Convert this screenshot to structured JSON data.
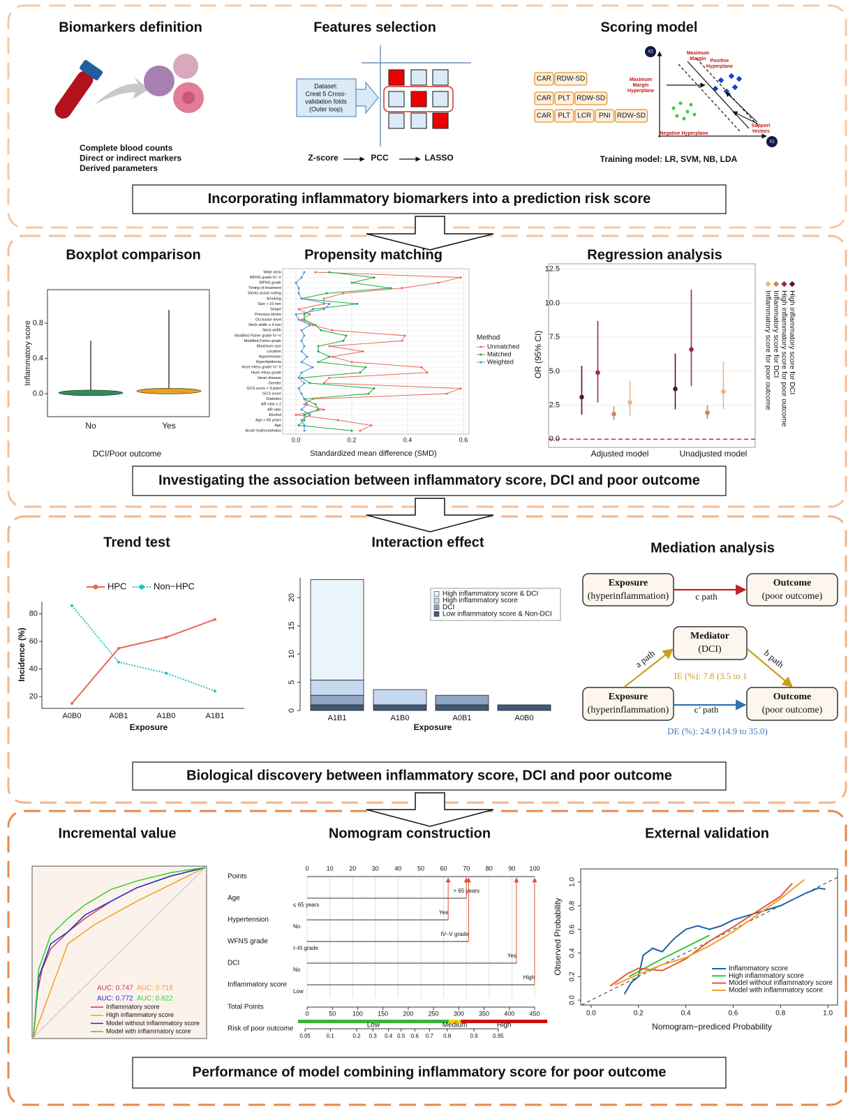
{
  "risk_score": {
    "banner": "Incorporating inflammatory biomarkers into a prediction risk score",
    "biomarkers": {
      "title": "Biomarkers definition",
      "notes": [
        "Complete blood counts",
        "Direct or indirect markers",
        "Derived parameters"
      ]
    },
    "features": {
      "title": "Features selection",
      "dataset": [
        "Dataset:",
        "Creat 5 Cross-",
        "validation folds",
        "(Outer loop)"
      ],
      "steps": [
        "Z-score",
        "PCC",
        "LASSO"
      ]
    },
    "scoring": {
      "title": "Scoring model",
      "feature_sets": [
        [
          "CAR",
          "RDW-SD"
        ],
        [
          "CAR",
          "PLT",
          "RDW-SD"
        ],
        [
          "CAR",
          "PLT",
          "LCR",
          "PNI",
          "RDW-SD"
        ]
      ],
      "axes": [
        "X2",
        "X1"
      ],
      "svm_labels": [
        "Maximum",
        "Margin",
        "Positive",
        "Hyperplane",
        "Maximum",
        "Margin",
        "Hyperplane",
        "Negative Hyperplane",
        "Support",
        "Vectors"
      ],
      "caption": "Training model: LR, SVM, NB, LDA"
    }
  },
  "association": {
    "banner": "Investigating the association between inflammatory score, DCI and poor outcome",
    "boxplot": {
      "type": "violin",
      "title": "Boxplot comparison",
      "categories": [
        "No",
        "Yes"
      ],
      "colors": [
        "#2e8b57",
        "#e8a020"
      ],
      "max": [
        0.6,
        0.95
      ],
      "median": [
        0.01,
        0.03
      ],
      "x_label": "DCI/Poor outcome",
      "y_label": "Inflammatory score",
      "ylim": [
        -0.26,
        1.18
      ],
      "yticks": [
        {
          "value": 0,
          "label": "0.0"
        },
        0.4,
        0.8
      ]
    },
    "propensity": {
      "type": "dot-line",
      "title": "Propensity matching",
      "x_label": "Standardized mean difference (SMD)",
      "legend_title": "Method",
      "categories": [
        "Wide neck",
        "WFNS grade IV−V",
        "WFNS grade",
        "Timing of treatment",
        "Stents assist coiling",
        "Smoking",
        "Size > 10 mm",
        "Shape",
        "Previous stroke",
        "Occlusion level",
        "Neck width ≥ 4 mm",
        "Neck width",
        "Modified Fisher grade IV−V",
        "Modified Fisher grade",
        "Maximum size",
        "Location",
        "Hypertension",
        "Hyperlipidemia",
        "Hunt−Hess grade IV−V",
        "Hunt−Hess grade",
        "Heart disease",
        "Gender",
        "GCS score < 9 point",
        "GCS score",
        "Diabetes",
        "AR ratio ≤ 2",
        "AR ratio",
        "Alcohol",
        "Age > 65 years",
        "Age",
        "Acute hydrocephalus"
      ],
      "series": [
        {
          "name": "Unmatched",
          "color": "#e8675a",
          "values": [
            0.07,
            0.59,
            0.51,
            0.38,
            0.17,
            0.1,
            0.1,
            0.01,
            0.05,
            0.02,
            0.06,
            0.13,
            0.39,
            0.38,
            0.12,
            0.24,
            0.13,
            0.2,
            0.45,
            0.47,
            0.12,
            0.1,
            0.59,
            0.54,
            0.06,
            0.03,
            0.1,
            0.0,
            0.15,
            0.27,
            0.23
          ]
        },
        {
          "name": "Matched",
          "color": "#22a845",
          "values": [
            0.12,
            0.28,
            0.2,
            0.34,
            0.11,
            0.02,
            0.22,
            0.06,
            0.03,
            0.03,
            0.07,
            0.09,
            0.18,
            0.17,
            0.08,
            0.08,
            0.12,
            0.08,
            0.25,
            0.23,
            0.02,
            0.05,
            0.28,
            0.26,
            0.03,
            0.07,
            0.08,
            0.03,
            0.03,
            0.01,
            0.2
          ]
        },
        {
          "name": "Weighted",
          "color": "#4a8fe0",
          "values": [
            0.03,
            0.02,
            0.0,
            0.01,
            0.01,
            0.02,
            0.12,
            0.1,
            0.0,
            0.01,
            0.05,
            0.02,
            0.03,
            0.02,
            0.03,
            0.02,
            0.04,
            0.02,
            0.06,
            0.02,
            0.01,
            0.03,
            0.01,
            0.02,
            0.03,
            0.04,
            0.02,
            0.05,
            0.02,
            0.03,
            0.03
          ]
        }
      ],
      "xlim": [
        -0.0475,
        0.62
      ],
      "xticks": [
        {
          "value": 0,
          "label": "0.0"
        },
        0.2,
        0.4,
        0.6
      ],
      "grid": true
    },
    "regression": {
      "type": "pointrange",
      "title": "Regression analysis",
      "y_label": "OR (95% CI)",
      "categories": [
        "Adjusted model",
        "Unadjusted model"
      ],
      "series": [
        {
          "name": "High inflammatory score for DCI",
          "color": "#5c0f2a",
          "values": [
            3.1,
            3.7
          ],
          "lower": [
            1.8,
            2.2
          ],
          "upper": [
            5.4,
            6.3
          ]
        },
        {
          "name": "High inflammatory score for poor outcome",
          "color": "#a0253e",
          "values": [
            4.9,
            6.6
          ],
          "lower": [
            2.7,
            3.9
          ],
          "upper": [
            8.7,
            11.0
          ]
        },
        {
          "name": "Inflammatory score for DCI",
          "color": "#d9805f",
          "values": [
            1.85,
            1.95
          ],
          "lower": [
            1.4,
            1.5
          ],
          "upper": [
            2.4,
            2.5
          ]
        },
        {
          "name": "Inflammatory score for poor outcome",
          "color": "#f0b282",
          "values": [
            2.7,
            3.5
          ],
          "lower": [
            1.7,
            2.2
          ],
          "upper": [
            4.3,
            5.7
          ]
        }
      ],
      "reference_line": 0,
      "ylim": [
        -0.6,
        12.9
      ],
      "yticks": [
        {
          "value": 0,
          "label": "0.0"
        },
        2.5,
        {
          "value": 5,
          "label": "5.0"
        },
        7.5,
        {
          "value": 10,
          "label": "10.0"
        },
        12.5
      ],
      "grid": true
    }
  },
  "discovery": {
    "banner": "Biological discovery between inflammatory score, DCI and poor outcome",
    "trend": {
      "type": "line",
      "title": "Trend test",
      "x_label": "Exposure",
      "y_label": "Incidence (%)",
      "categories": [
        "A0B0",
        "A0B1",
        "A1B0",
        "A1B1"
      ],
      "series": [
        {
          "name": "HPC",
          "color": "#e8675a",
          "values": [
            15,
            55,
            63,
            76
          ]
        },
        {
          "name": "Non−HPC",
          "color": "#26c0c0",
          "dashed": true,
          "values": [
            86,
            45,
            37,
            24
          ]
        }
      ],
      "ylim": [
        11.4,
        88.9
      ],
      "yticks": [
        20,
        40,
        60,
        80
      ]
    },
    "interaction": {
      "type": "stacked-bar",
      "title": "Interaction effect",
      "x_label": "Exposure",
      "categories": [
        "A1B1",
        "A1B0",
        "A0B1",
        "A0B0"
      ],
      "series": [
        {
          "name": "Low inflammatory score & Non-DCI",
          "color": "#3f5a78",
          "values": [
            1,
            1,
            1,
            1
          ]
        },
        {
          "name": "DCI",
          "color": "#8fa5c3",
          "values": [
            1.7,
            0,
            1.7,
            0
          ]
        },
        {
          "name": "High inflammatory score",
          "color": "#c5d8ef",
          "values": [
            2.7,
            2.7,
            0,
            0
          ]
        },
        {
          "name": "High inflammatory score & DCI",
          "color": "#eaf4fb",
          "values": [
            17.8,
            0,
            0,
            0
          ]
        }
      ],
      "ylim": [
        0,
        23.5
      ],
      "yticks": [
        0,
        5,
        10,
        15,
        20
      ]
    },
    "mediation": {
      "title": "Mediation analysis",
      "exposure_top": [
        "Exposure",
        "(hyperinflammation)"
      ],
      "outcome_top": [
        "Outcome",
        "(poor outcome)"
      ],
      "c_path": "c path",
      "mediator": [
        "Mediator",
        "(DCI)"
      ],
      "a_path": "a path",
      "b_path": "b path",
      "indirect": "IE (%): 7.8 (3.5 to 1",
      "exposure_bottom": [
        "Exposure",
        "(hyperinflammation)"
      ],
      "outcome_bottom": [
        "Outcome",
        "(poor outcome)"
      ],
      "c_prime_path": "c’ path",
      "direct": "DE (%): 24.9 (14.9 to 35.0)"
    }
  },
  "performance": {
    "banner": "Performance of model combining inflammatory score for poor outcome",
    "roc": {
      "type": "roc",
      "title": "Incremental value",
      "xlim": [
        0,
        1
      ],
      "ylim": [
        0,
        1
      ],
      "series": [
        {
          "name": "Inflammatory score",
          "auc_label": "AUC: 0.747",
          "color": "#c8384a",
          "fpr": [
            0,
            0.02,
            0.05,
            0.1,
            0.2,
            0.3,
            0.45,
            0.6,
            0.8,
            1
          ],
          "tpr": [
            0,
            0.25,
            0.4,
            0.52,
            0.62,
            0.7,
            0.8,
            0.88,
            0.95,
            1
          ]
        },
        {
          "name": "High inflammatory score",
          "auc_label": "AUC: 0.718",
          "color": "#f0a020",
          "fpr": [
            0,
            0.2,
            0.35,
            0.6,
            0.8,
            1
          ],
          "tpr": [
            0,
            0.55,
            0.66,
            0.8,
            0.9,
            1
          ]
        },
        {
          "name": "Model without inflammatory score",
          "auc_label": "AUC: 0.772",
          "color": "#1a2fd0",
          "fpr": [
            0,
            0.03,
            0.1,
            0.2,
            0.3,
            0.45,
            0.6,
            0.8,
            1
          ],
          "tpr": [
            0,
            0.35,
            0.55,
            0.62,
            0.72,
            0.8,
            0.88,
            0.95,
            1
          ]
        },
        {
          "name": "Model with inflammatory score",
          "auc_label": "AUC: 0.822",
          "color": "#30d030",
          "fpr": [
            0,
            0.03,
            0.1,
            0.2,
            0.3,
            0.45,
            0.6,
            0.8,
            1
          ],
          "tpr": [
            0,
            0.4,
            0.6,
            0.7,
            0.78,
            0.87,
            0.92,
            0.97,
            1
          ]
        }
      ]
    },
    "nomogram": {
      "type": "nomogram",
      "title": "Nomogram construction",
      "points_label": "Points",
      "points_ticks": [
        0,
        10,
        20,
        30,
        40,
        50,
        60,
        70,
        80,
        90,
        100
      ],
      "variables": [
        {
          "name": "Age",
          "levels": [
            "≤ 65 years",
            "> 65 years"
          ],
          "points": [
            0,
            70
          ]
        },
        {
          "name": "Hypertension",
          "levels": [
            "No",
            "Yes"
          ],
          "points": [
            0,
            62
          ]
        },
        {
          "name": "WFNS grade",
          "levels": [
            "I–III grade",
            "IV–V grade"
          ],
          "points": [
            0,
            71
          ]
        },
        {
          "name": "DCI",
          "levels": [
            "No",
            "Yes"
          ],
          "points": [
            0,
            92
          ]
        },
        {
          "name": "Inflammatory score",
          "levels": [
            "Low",
            "High"
          ],
          "points": [
            0,
            100
          ]
        }
      ],
      "total_label": "Total Points",
      "total_ticks": [
        0,
        50,
        100,
        150,
        200,
        250,
        300,
        350,
        400,
        450
      ],
      "risk_label": "Risk of poor outcome",
      "risk_ticks": [
        0.05,
        0.1,
        0.2,
        0.3,
        0.4,
        0.5,
        0.6,
        0.7,
        0.8,
        0.9,
        0.95
      ],
      "risk_tick_points": [
        -4,
        46,
        98,
        130,
        161,
        186,
        213,
        242,
        277,
        330,
        378
      ],
      "risk_bands": [
        {
          "label": "Low",
          "color": "#3cb43c",
          "from": -18,
          "to": 280
        },
        {
          "label": "Medium",
          "color": "#f0d000",
          "from": 280,
          "to": 304
        },
        {
          "label": "High",
          "color": "#cc1010",
          "from": 304,
          "to": 475
        }
      ]
    },
    "calibration": {
      "type": "line",
      "title": "External validation",
      "x_label": "Nomogram−prediced Probability",
      "y_label": "Observed Probability",
      "xlim": [
        -0.044,
        1.041
      ],
      "ylim": [
        -0.041,
        1.112
      ],
      "xticks": [
        {
          "value": 0,
          "label": "0.0"
        },
        0.2,
        0.4,
        0.6,
        0.8,
        {
          "value": 1,
          "label": "1.0"
        }
      ],
      "yticks": [
        {
          "value": 0,
          "label": "0.0"
        },
        0.2,
        0.4,
        0.6,
        0.8,
        {
          "value": 1,
          "label": "1.0"
        }
      ],
      "series": [
        {
          "name": "Inflammatory score",
          "color": "#1f5fa8",
          "x": [
            0.14,
            0.17,
            0.2,
            0.22,
            0.26,
            0.3,
            0.35,
            0.4,
            0.45,
            0.5,
            0.55,
            0.6,
            0.7,
            0.8,
            0.9,
            0.96,
            0.99
          ],
          "y": [
            0.05,
            0.15,
            0.2,
            0.38,
            0.44,
            0.41,
            0.52,
            0.6,
            0.63,
            0.6,
            0.63,
            0.68,
            0.74,
            0.8,
            0.9,
            0.95,
            0.94
          ]
        },
        {
          "name": "High inflammatory score",
          "color": "#30c830",
          "x": [
            0.16,
            0.3,
            0.45,
            0.5
          ],
          "y": [
            0.2,
            0.35,
            0.5,
            0.55
          ]
        },
        {
          "name": "Model without inflammatory score",
          "color": "#e8553a",
          "x": [
            0.08,
            0.15,
            0.2,
            0.3,
            0.4,
            0.5,
            0.6,
            0.7,
            0.8,
            0.85
          ],
          "y": [
            0.12,
            0.22,
            0.27,
            0.25,
            0.35,
            0.5,
            0.62,
            0.75,
            0.88,
            0.99
          ]
        },
        {
          "name": "Model with inflammatory score",
          "color": "#f0a020",
          "x": [
            0.1,
            0.2,
            0.3,
            0.4,
            0.5,
            0.6,
            0.7,
            0.8,
            0.9
          ],
          "y": [
            0.13,
            0.22,
            0.3,
            0.36,
            0.46,
            0.58,
            0.72,
            0.86,
            1.02
          ]
        }
      ]
    }
  }
}
